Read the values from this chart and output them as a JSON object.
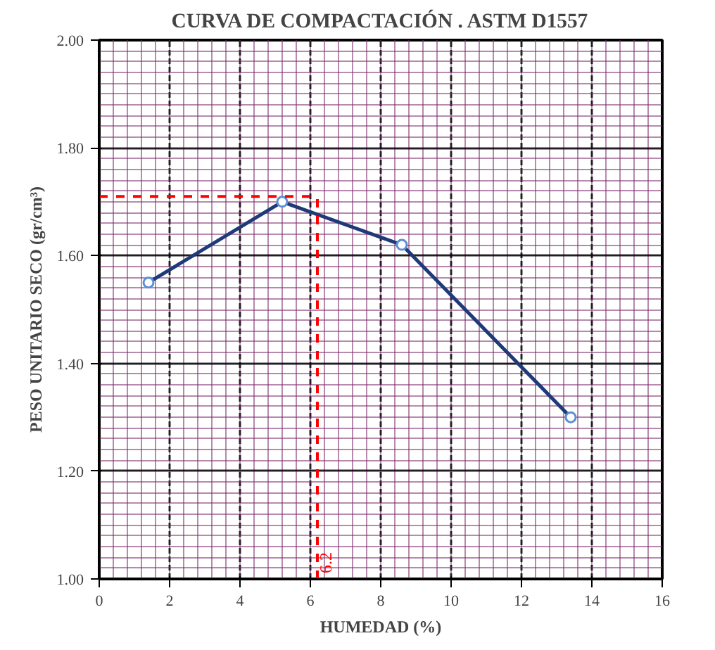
{
  "chart_data": {
    "type": "line",
    "title": "CURVA DE COMPACTACIÓN . ASTM D1557",
    "xlabel": "HUMEDAD (%)",
    "ylabel": "PESO UNITARIO SECO (gr/cm³)",
    "series": [
      {
        "color": "#1f3a78",
        "x": [
          1.4,
          5.2,
          8.6,
          13.4
        ],
        "values": [
          1.55,
          1.7,
          1.62,
          1.3
        ]
      }
    ],
    "marker": "circle",
    "xlim": [
      0,
      16
    ],
    "xticks": [
      0,
      2,
      4,
      6,
      8,
      10,
      12,
      14,
      16
    ],
    "ylim": [
      1.0,
      2.0
    ],
    "yticks": [
      {
        "value": 1.0,
        "label": "1.00"
      },
      {
        "value": 1.2,
        "label": "1.20"
      },
      {
        "value": 1.4,
        "label": "1.40"
      },
      {
        "value": 1.6,
        "label": "1.60"
      },
      {
        "value": 1.8,
        "label": "1.80"
      },
      {
        "value": 2.0,
        "label": "2.00"
      }
    ],
    "grid": true,
    "ref_lines": [
      {
        "axis": "y",
        "value": 1.71,
        "color": "#ff0000",
        "line_style": "dashed"
      },
      {
        "axis": "x",
        "value": 6.2,
        "label": "6.2",
        "color": "#ff0000",
        "line_style": "dashed"
      }
    ]
  }
}
